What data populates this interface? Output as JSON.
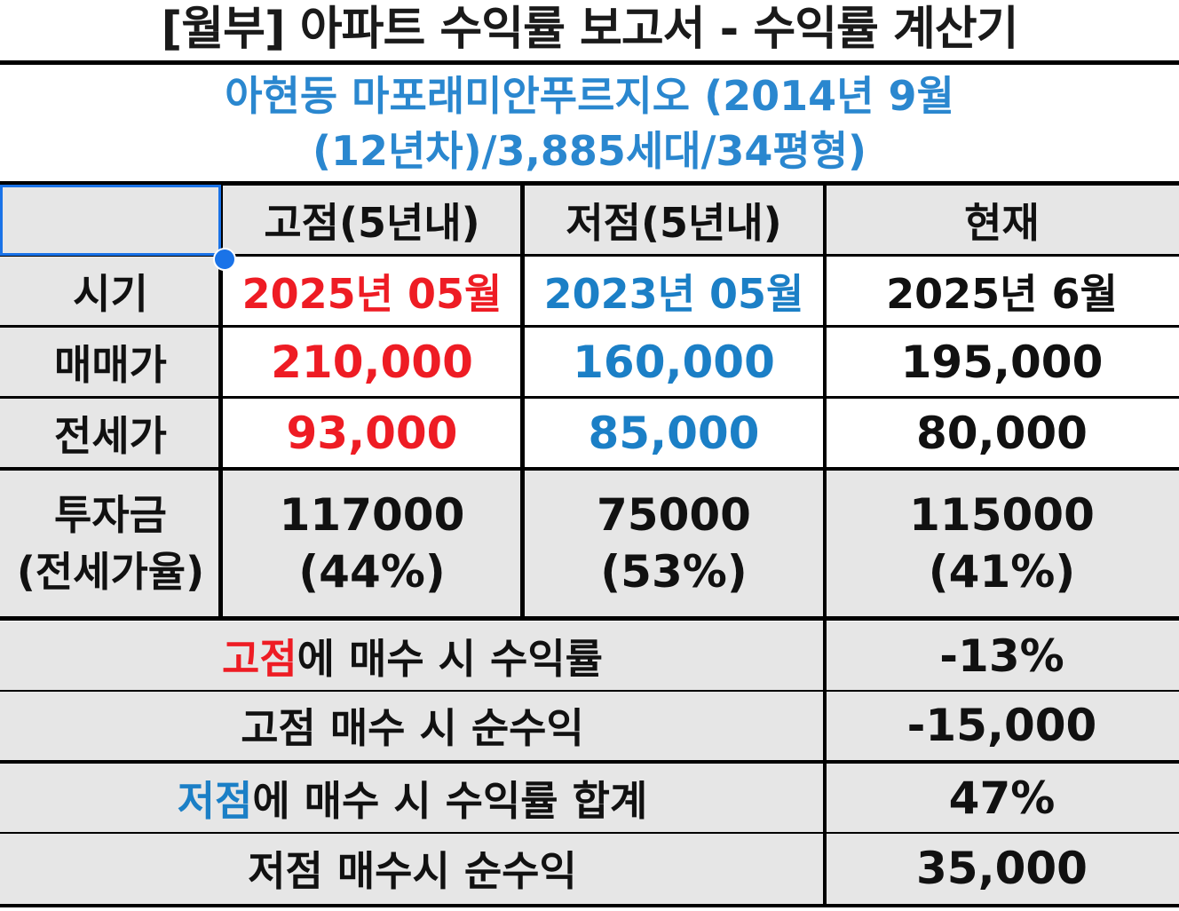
{
  "title": "[월부] 아파트 수익률 보고서 - 수익률 계산기",
  "apartment": {
    "line1": "아현동 마포래미안푸르지오 (2014년 9월",
    "line2": "(12년차)/3,885세대/34평형)"
  },
  "columns": {
    "high": "고점(5년내)",
    "low": "저점(5년내)",
    "current": "현재"
  },
  "rows": {
    "period": {
      "label": "시기",
      "high": "2025년 05월",
      "low": "2023년 05월",
      "current": "2025년 6월"
    },
    "sale_price": {
      "label": "매매가",
      "high": "210,000",
      "low": "160,000",
      "current": "195,000"
    },
    "jeonse_price": {
      "label": "전세가",
      "high": "93,000",
      "low": "85,000",
      "current": "80,000"
    },
    "investment": {
      "label_line1": "투자금",
      "label_line2": "(전세가율)",
      "high_line1": "117000",
      "high_line2": "(44%)",
      "low_line1": "75000",
      "low_line2": "(53%)",
      "current_line1": "115000",
      "current_line2": "(41%)"
    }
  },
  "summary": {
    "high_return": {
      "label_highlight": "고점",
      "label_rest": "에 매수 시 수익률",
      "value": "-13%"
    },
    "high_profit": {
      "label": "고점 매수 시 순수익",
      "value": "-15,000"
    },
    "low_return": {
      "label_highlight": "저점",
      "label_rest": "에 매수 시 수익률 합계",
      "value": "47%"
    },
    "low_profit": {
      "label": "저점 매수시 순수익",
      "value": "35,000"
    }
  },
  "colors": {
    "high": "#ee1c24",
    "low": "#1b7fc6",
    "apartment_text": "#2a87cf",
    "gray_fill": "#e6e6e6",
    "selection": "#1a73e8"
  }
}
